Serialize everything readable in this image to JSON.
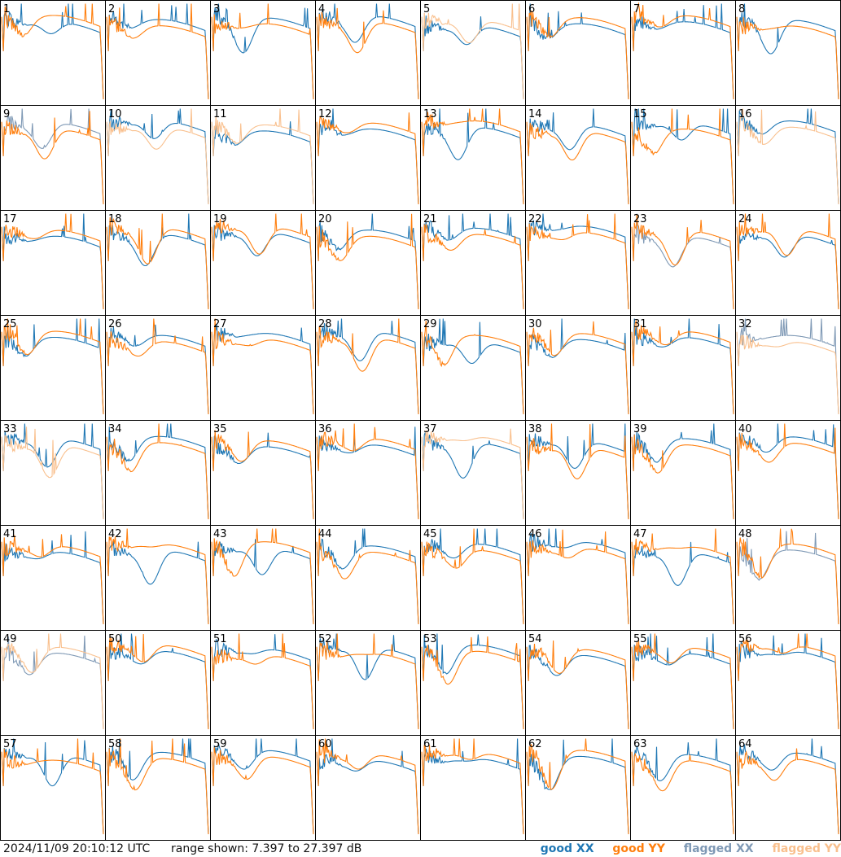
{
  "footer": {
    "timestamp": "2024/11/09 20:10:12 UTC",
    "range": "range shown: 7.397 to 27.397 dB"
  },
  "legend": {
    "good_xx": "good XX",
    "good_yy": "good YY",
    "flagged_xx": "flagged XX",
    "flagged_yy": "flagged YY"
  },
  "colors": {
    "good_xx": "#1f77b4",
    "good_yy": "#ff7f0e",
    "flagged_xx": "#7f99b5",
    "flagged_yy": "#f9c08e",
    "frame": "#000000"
  },
  "chart_data": {
    "type": "line",
    "grid": "8x8 small multiples",
    "ylim": [
      7.397,
      27.397
    ],
    "yunit": "dB",
    "series_kinds": [
      "XX",
      "YY"
    ],
    "panels": [
      {
        "id": "1",
        "xx": "good",
        "yy": "good"
      },
      {
        "id": "2",
        "xx": "good",
        "yy": "good"
      },
      {
        "id": "3",
        "xx": "good",
        "yy": "good"
      },
      {
        "id": "4",
        "xx": "good",
        "yy": "good"
      },
      {
        "id": "5",
        "xx": "good",
        "yy": "flagged"
      },
      {
        "id": "6",
        "xx": "good",
        "yy": "good"
      },
      {
        "id": "7",
        "xx": "good",
        "yy": "good"
      },
      {
        "id": "8",
        "xx": "good",
        "yy": "good"
      },
      {
        "id": "9",
        "xx": "flagged",
        "yy": "good"
      },
      {
        "id": "10",
        "xx": "good",
        "yy": "flagged"
      },
      {
        "id": "11",
        "xx": "good",
        "yy": "flagged"
      },
      {
        "id": "12",
        "xx": "good",
        "yy": "good"
      },
      {
        "id": "13",
        "xx": "good",
        "yy": "good"
      },
      {
        "id": "14",
        "xx": "good",
        "yy": "good"
      },
      {
        "id": "15",
        "xx": "good",
        "yy": "good"
      },
      {
        "id": "16",
        "xx": "good",
        "yy": "flagged"
      },
      {
        "id": "17",
        "xx": "good",
        "yy": "good"
      },
      {
        "id": "18",
        "xx": "good",
        "yy": "good"
      },
      {
        "id": "19",
        "xx": "good",
        "yy": "good"
      },
      {
        "id": "20",
        "xx": "good",
        "yy": "good"
      },
      {
        "id": "21",
        "xx": "good",
        "yy": "good"
      },
      {
        "id": "22",
        "xx": "good",
        "yy": "good"
      },
      {
        "id": "23",
        "xx": "flagged",
        "yy": "good"
      },
      {
        "id": "24",
        "xx": "good",
        "yy": "good"
      },
      {
        "id": "25",
        "xx": "good",
        "yy": "good"
      },
      {
        "id": "26",
        "xx": "good",
        "yy": "good"
      },
      {
        "id": "27",
        "xx": "good",
        "yy": "good"
      },
      {
        "id": "28",
        "xx": "good",
        "yy": "good"
      },
      {
        "id": "29",
        "xx": "good",
        "yy": "good"
      },
      {
        "id": "30",
        "xx": "good",
        "yy": "good"
      },
      {
        "id": "31",
        "xx": "good",
        "yy": "good"
      },
      {
        "id": "32",
        "xx": "flagged",
        "yy": "flagged"
      },
      {
        "id": "33",
        "xx": "good",
        "yy": "flagged"
      },
      {
        "id": "34",
        "xx": "good",
        "yy": "good"
      },
      {
        "id": "35",
        "xx": "good",
        "yy": "good"
      },
      {
        "id": "36",
        "xx": "good",
        "yy": "good"
      },
      {
        "id": "37",
        "xx": "good",
        "yy": "flagged"
      },
      {
        "id": "38",
        "xx": "good",
        "yy": "good"
      },
      {
        "id": "39",
        "xx": "good",
        "yy": "good"
      },
      {
        "id": "40",
        "xx": "good",
        "yy": "good"
      },
      {
        "id": "41",
        "xx": "good",
        "yy": "good"
      },
      {
        "id": "42",
        "xx": "good",
        "yy": "good"
      },
      {
        "id": "43",
        "xx": "good",
        "yy": "good"
      },
      {
        "id": "44",
        "xx": "good",
        "yy": "good"
      },
      {
        "id": "45",
        "xx": "good",
        "yy": "good"
      },
      {
        "id": "46",
        "xx": "good",
        "yy": "good"
      },
      {
        "id": "47",
        "xx": "good",
        "yy": "good"
      },
      {
        "id": "48",
        "xx": "flagged",
        "yy": "good"
      },
      {
        "id": "49",
        "xx": "flagged",
        "yy": "flagged"
      },
      {
        "id": "50",
        "xx": "good",
        "yy": "good"
      },
      {
        "id": "51",
        "xx": "good",
        "yy": "good"
      },
      {
        "id": "52",
        "xx": "good",
        "yy": "good"
      },
      {
        "id": "53",
        "xx": "good",
        "yy": "good"
      },
      {
        "id": "54",
        "xx": "good",
        "yy": "good"
      },
      {
        "id": "55",
        "xx": "good",
        "yy": "good"
      },
      {
        "id": "56",
        "xx": "good",
        "yy": "good"
      },
      {
        "id": "57",
        "xx": "good",
        "yy": "good"
      },
      {
        "id": "58",
        "xx": "good",
        "yy": "good"
      },
      {
        "id": "59",
        "xx": "good",
        "yy": "good"
      },
      {
        "id": "60",
        "xx": "good",
        "yy": "good"
      },
      {
        "id": "61",
        "xx": "good",
        "yy": "good"
      },
      {
        "id": "62",
        "xx": "good",
        "yy": "good"
      },
      {
        "id": "63",
        "xx": "good",
        "yy": "good"
      },
      {
        "id": "64",
        "xx": "good",
        "yy": "good"
      }
    ]
  }
}
